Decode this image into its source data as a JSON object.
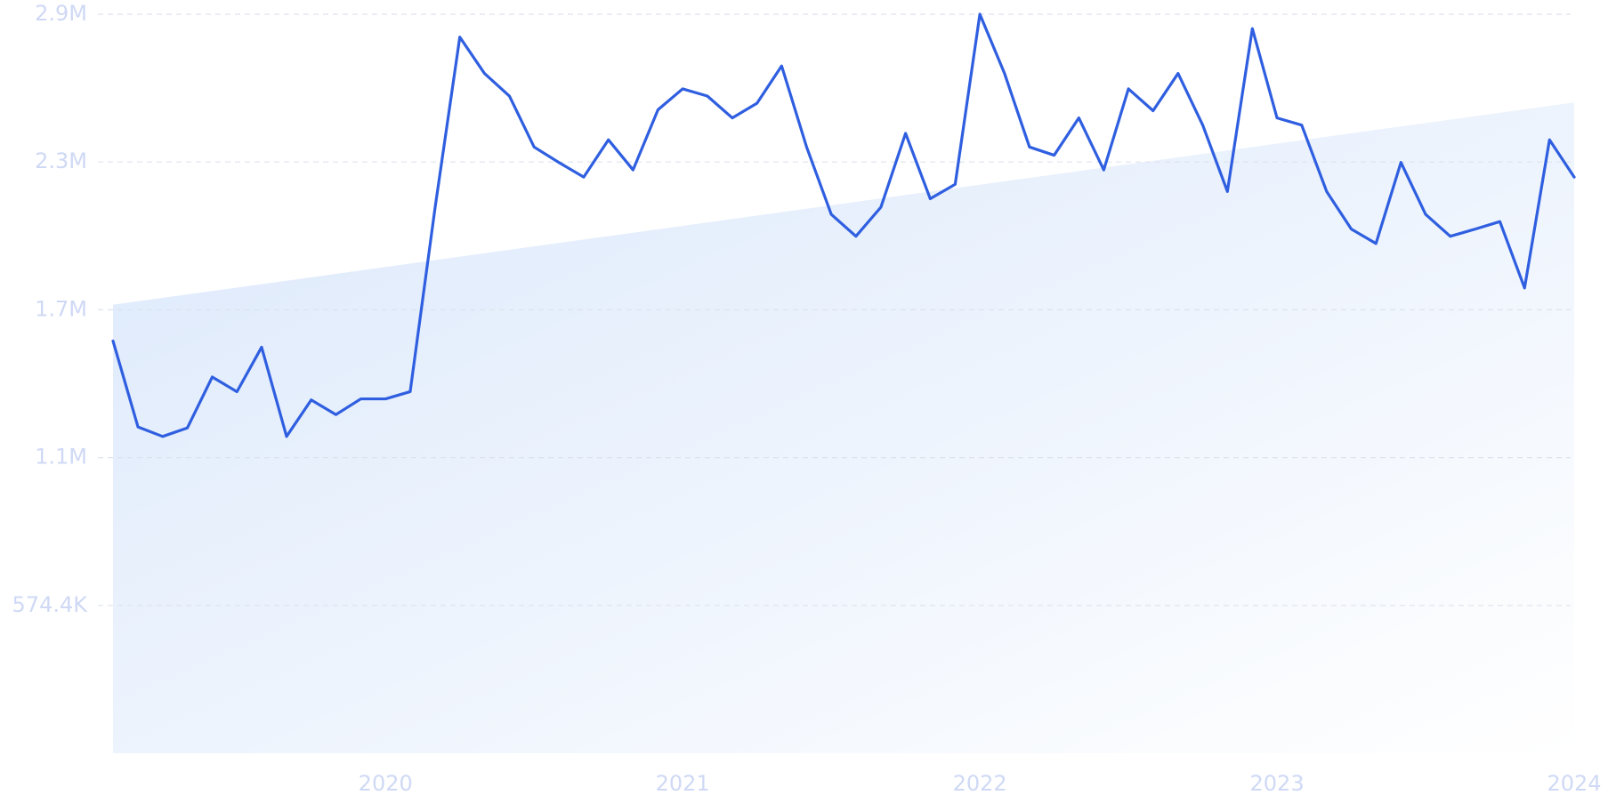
{
  "chart_data": {
    "type": "line",
    "x": [
      2019.083,
      2019.167,
      2019.25,
      2019.333,
      2019.417,
      2019.5,
      2019.583,
      2019.667,
      2019.75,
      2019.833,
      2019.917,
      2020.0,
      2020.083,
      2020.167,
      2020.25,
      2020.333,
      2020.417,
      2020.5,
      2020.583,
      2020.667,
      2020.75,
      2020.833,
      2020.917,
      2021.0,
      2021.083,
      2021.167,
      2021.25,
      2021.333,
      2021.417,
      2021.5,
      2021.583,
      2021.667,
      2021.75,
      2021.833,
      2021.917,
      2022.0,
      2022.083,
      2022.167,
      2022.25,
      2022.333,
      2022.417,
      2022.5,
      2022.583,
      2022.667,
      2022.75,
      2022.833,
      2022.917,
      2023.0,
      2023.083,
      2023.167,
      2023.25,
      2023.333,
      2023.417,
      2023.5,
      2023.583,
      2023.667,
      2023.75,
      2023.833,
      2023.917,
      2024.0
    ],
    "series": [
      {
        "color": "#2f5fe0",
        "values": [
          1602000,
          1268000,
          1231000,
          1264000,
          1462000,
          1405000,
          1578000,
          1231000,
          1373000,
          1316000,
          1377000,
          1377000,
          1405000,
          2122000,
          2783000,
          2642000,
          2554000,
          2356000,
          2296000,
          2239000,
          2384000,
          2267000,
          2501000,
          2582000,
          2554000,
          2469000,
          2526000,
          2671000,
          2356000,
          2094000,
          2009000,
          2122000,
          2409000,
          2155000,
          2211000,
          2872000,
          2642000,
          2356000,
          2324000,
          2469000,
          2267000,
          2582000,
          2497000,
          2642000,
          2441000,
          2183000,
          2816000,
          2469000,
          2441000,
          2183000,
          2037000,
          1981000,
          2296000,
          2094000,
          2009000,
          2037000,
          2066000,
          1808000,
          2384000,
          2239000
        ]
      }
    ],
    "trend": {
      "x": [
        2019.083,
        2024.0
      ],
      "values": [
        1743000,
        2529000
      ],
      "color": "#dbe8fb"
    },
    "xlim": [
      2019.083,
      2024.0
    ],
    "xticks": [
      2020,
      2021,
      2022,
      2023,
      2024
    ],
    "ylim": [
      0,
      2872000
    ],
    "yticks": [
      {
        "value": 574400,
        "label": "574.4K"
      },
      {
        "value": 1148800,
        "label": "1.1M"
      },
      {
        "value": 1723200,
        "label": "1.7M"
      },
      {
        "value": 2297600,
        "label": "2.3M"
      },
      {
        "value": 2872000,
        "label": "2.9M"
      }
    ],
    "grid": true
  }
}
